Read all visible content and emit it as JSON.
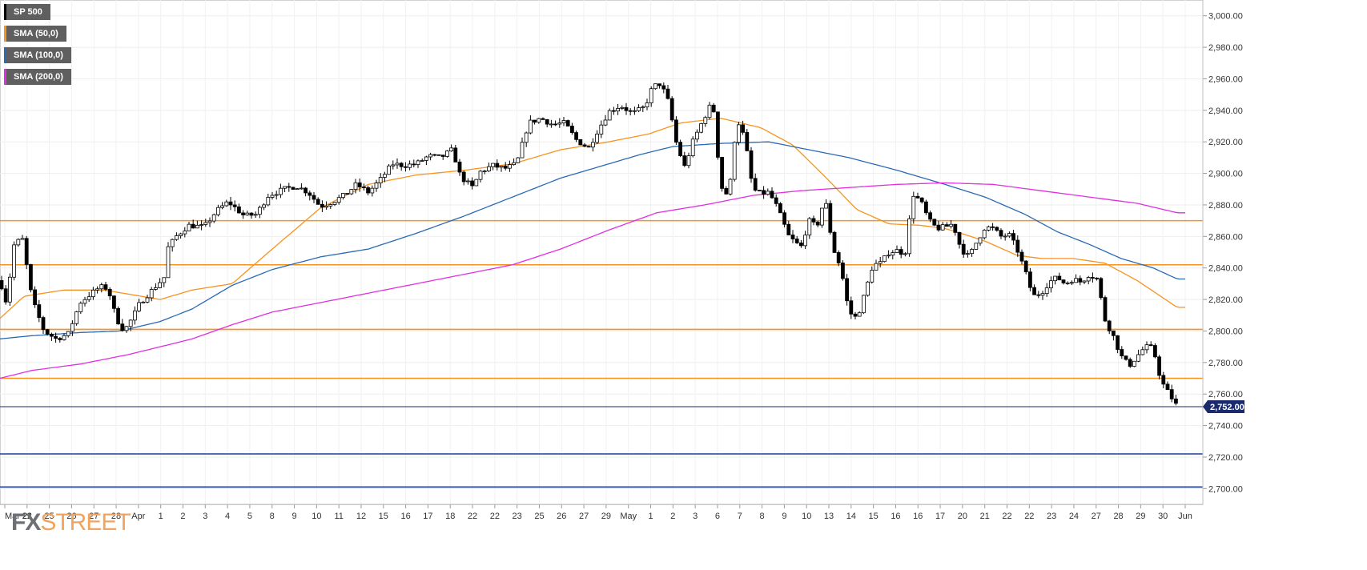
{
  "legend": {
    "items": [
      {
        "label": "SP 500",
        "color": "#000000"
      },
      {
        "label": "SMA (50,0)",
        "color": "#f7931e"
      },
      {
        "label": "SMA (100,0)",
        "color": "#2a6ab5"
      },
      {
        "label": "SMA (200,0)",
        "color": "#e02ee0"
      }
    ]
  },
  "logo": {
    "part1": "FX",
    "part2": "STREET"
  },
  "chart_data": {
    "type": "candlestick",
    "ylim": [
      2690,
      3010
    ],
    "y_ticks": [
      "2,700.00",
      "2,720.00",
      "2,740.00",
      "2,760.00",
      "2,780.00",
      "2,800.00",
      "2,820.00",
      "2,840.00",
      "2,860.00",
      "2,880.00",
      "2,900.00",
      "2,920.00",
      "2,940.00",
      "2,960.00",
      "2,980.00",
      "3,000.00"
    ],
    "y_tick_values": [
      2700,
      2720,
      2740,
      2760,
      2780,
      2800,
      2820,
      2840,
      2860,
      2880,
      2900,
      2920,
      2940,
      2960,
      2980,
      3000
    ],
    "x_labels": [
      "Mar 21",
      "22",
      "25",
      "26",
      "27",
      "28",
      "Apr",
      "1",
      "2",
      "3",
      "4",
      "5",
      "8",
      "9",
      "10",
      "11",
      "12",
      "15",
      "16",
      "17",
      "18",
      "22",
      "22",
      "23",
      "25",
      "26",
      "27",
      "29",
      "May",
      "1",
      "2",
      "3",
      "6",
      "7",
      "8",
      "9",
      "10",
      "13",
      "14",
      "15",
      "16",
      "16",
      "17",
      "20",
      "21",
      "22",
      "22",
      "23",
      "24",
      "27",
      "28",
      "29",
      "30",
      "Jun"
    ],
    "current_price": {
      "value": 2752,
      "label": "2,752.00"
    },
    "horizontal_levels": [
      {
        "value": 2870,
        "color": "#f7931e"
      },
      {
        "value": 2842,
        "color": "#f7931e"
      },
      {
        "value": 2801,
        "color": "#f7931e"
      },
      {
        "value": 2770,
        "color": "#f7931e"
      },
      {
        "value": 2722,
        "color": "#1f3f9f"
      },
      {
        "value": 2701,
        "color": "#1f3f9f"
      }
    ],
    "price_anchors": [
      [
        0,
        2832
      ],
      [
        8,
        2818
      ],
      [
        18,
        2856
      ],
      [
        28,
        2858
      ],
      [
        40,
        2820
      ],
      [
        55,
        2800
      ],
      [
        70,
        2795
      ],
      [
        85,
        2798
      ],
      [
        100,
        2818
      ],
      [
        112,
        2823
      ],
      [
        125,
        2828
      ],
      [
        135,
        2827
      ],
      [
        145,
        2808
      ],
      [
        155,
        2800
      ],
      [
        165,
        2808
      ],
      [
        175,
        2818
      ],
      [
        190,
        2826
      ],
      [
        205,
        2834
      ],
      [
        210,
        2853
      ],
      [
        220,
        2860
      ],
      [
        235,
        2867
      ],
      [
        255,
        2866
      ],
      [
        270,
        2876
      ],
      [
        285,
        2882
      ],
      [
        305,
        2873
      ],
      [
        320,
        2874
      ],
      [
        335,
        2886
      ],
      [
        355,
        2890
      ],
      [
        370,
        2892
      ],
      [
        385,
        2888
      ],
      [
        400,
        2879
      ],
      [
        415,
        2882
      ],
      [
        430,
        2886
      ],
      [
        445,
        2893
      ],
      [
        460,
        2888
      ],
      [
        475,
        2896
      ],
      [
        490,
        2906
      ],
      [
        505,
        2905
      ],
      [
        520,
        2906
      ],
      [
        535,
        2911
      ],
      [
        550,
        2910
      ],
      [
        565,
        2915
      ],
      [
        575,
        2898
      ],
      [
        590,
        2891
      ],
      [
        600,
        2901
      ],
      [
        615,
        2905
      ],
      [
        630,
        2903
      ],
      [
        645,
        2906
      ],
      [
        660,
        2932
      ],
      [
        675,
        2935
      ],
      [
        690,
        2931
      ],
      [
        705,
        2932
      ],
      [
        720,
        2921
      ],
      [
        735,
        2916
      ],
      [
        745,
        2926
      ],
      [
        760,
        2939
      ],
      [
        775,
        2943
      ],
      [
        790,
        2938
      ],
      [
        805,
        2942
      ],
      [
        815,
        2955
      ],
      [
        825,
        2957
      ],
      [
        835,
        2945
      ],
      [
        845,
        2918
      ],
      [
        855,
        2904
      ],
      [
        865,
        2920
      ],
      [
        880,
        2936
      ],
      [
        890,
        2946
      ],
      [
        900,
        2892
      ],
      [
        910,
        2885
      ],
      [
        920,
        2935
      ],
      [
        930,
        2922
      ],
      [
        940,
        2890
      ],
      [
        950,
        2887
      ],
      [
        960,
        2888
      ],
      [
        970,
        2879
      ],
      [
        985,
        2860
      ],
      [
        1000,
        2853
      ],
      [
        1010,
        2870
      ],
      [
        1020,
        2866
      ],
      [
        1030,
        2885
      ],
      [
        1040,
        2853
      ],
      [
        1050,
        2840
      ],
      [
        1060,
        2812
      ],
      [
        1070,
        2808
      ],
      [
        1080,
        2824
      ],
      [
        1090,
        2842
      ],
      [
        1100,
        2843
      ],
      [
        1110,
        2850
      ],
      [
        1120,
        2851
      ],
      [
        1130,
        2849
      ],
      [
        1140,
        2887
      ],
      [
        1150,
        2882
      ],
      [
        1160,
        2870
      ],
      [
        1170,
        2865
      ],
      [
        1180,
        2866
      ],
      [
        1190,
        2868
      ],
      [
        1200,
        2852
      ],
      [
        1210,
        2847
      ],
      [
        1220,
        2857
      ],
      [
        1230,
        2866
      ],
      [
        1240,
        2865
      ],
      [
        1250,
        2860
      ],
      [
        1260,
        2861
      ],
      [
        1270,
        2852
      ],
      [
        1280,
        2838
      ],
      [
        1290,
        2822
      ],
      [
        1300,
        2824
      ],
      [
        1310,
        2831
      ],
      [
        1320,
        2834
      ],
      [
        1330,
        2830
      ],
      [
        1340,
        2833
      ],
      [
        1350,
        2831
      ],
      [
        1360,
        2836
      ],
      [
        1370,
        2833
      ],
      [
        1380,
        2807
      ],
      [
        1390,
        2797
      ],
      [
        1400,
        2784
      ],
      [
        1410,
        2778
      ],
      [
        1420,
        2784
      ],
      [
        1430,
        2790
      ],
      [
        1440,
        2789
      ],
      [
        1450,
        2768
      ],
      [
        1460,
        2760
      ],
      [
        1470,
        2752
      ]
    ],
    "series": [
      {
        "name": "SMA (50,0)",
        "color": "#f7931e",
        "anchors": [
          [
            0,
            2808
          ],
          [
            30,
            2822
          ],
          [
            80,
            2826
          ],
          [
            130,
            2826
          ],
          [
            200,
            2820
          ],
          [
            240,
            2826
          ],
          [
            290,
            2830
          ],
          [
            340,
            2852
          ],
          [
            400,
            2878
          ],
          [
            460,
            2893
          ],
          [
            520,
            2899
          ],
          [
            580,
            2902
          ],
          [
            640,
            2906
          ],
          [
            700,
            2915
          ],
          [
            760,
            2920
          ],
          [
            810,
            2925
          ],
          [
            850,
            2932
          ],
          [
            900,
            2935
          ],
          [
            950,
            2929
          ],
          [
            990,
            2918
          ],
          [
            1030,
            2898
          ],
          [
            1070,
            2877
          ],
          [
            1110,
            2868
          ],
          [
            1150,
            2867
          ],
          [
            1180,
            2865
          ],
          [
            1200,
            2862
          ],
          [
            1230,
            2857
          ],
          [
            1270,
            2848
          ],
          [
            1300,
            2846
          ],
          [
            1340,
            2846
          ],
          [
            1380,
            2843
          ],
          [
            1420,
            2832
          ],
          [
            1470,
            2815
          ]
        ]
      },
      {
        "name": "SMA (100,0)",
        "color": "#2a6ab5",
        "anchors": [
          [
            0,
            2795
          ],
          [
            40,
            2797
          ],
          [
            100,
            2799
          ],
          [
            150,
            2800
          ],
          [
            200,
            2806
          ],
          [
            240,
            2814
          ],
          [
            290,
            2829
          ],
          [
            340,
            2839
          ],
          [
            400,
            2847
          ],
          [
            460,
            2852
          ],
          [
            520,
            2862
          ],
          [
            580,
            2873
          ],
          [
            640,
            2885
          ],
          [
            700,
            2897
          ],
          [
            760,
            2906
          ],
          [
            800,
            2912
          ],
          [
            840,
            2917
          ],
          [
            900,
            2919
          ],
          [
            960,
            2920
          ],
          [
            1000,
            2916
          ],
          [
            1060,
            2910
          ],
          [
            1120,
            2902
          ],
          [
            1180,
            2893
          ],
          [
            1230,
            2885
          ],
          [
            1280,
            2874
          ],
          [
            1320,
            2863
          ],
          [
            1360,
            2855
          ],
          [
            1400,
            2846
          ],
          [
            1440,
            2840
          ],
          [
            1470,
            2833
          ]
        ]
      },
      {
        "name": "SMA (200,0)",
        "color": "#e02ee0",
        "anchors": [
          [
            0,
            2770
          ],
          [
            40,
            2775
          ],
          [
            100,
            2779
          ],
          [
            160,
            2785
          ],
          [
            240,
            2795
          ],
          [
            290,
            2804
          ],
          [
            340,
            2812
          ],
          [
            400,
            2818
          ],
          [
            460,
            2824
          ],
          [
            520,
            2830
          ],
          [
            580,
            2836
          ],
          [
            640,
            2842
          ],
          [
            700,
            2852
          ],
          [
            760,
            2864
          ],
          [
            820,
            2875
          ],
          [
            880,
            2880
          ],
          [
            940,
            2886
          ],
          [
            1000,
            2889
          ],
          [
            1060,
            2891
          ],
          [
            1120,
            2893
          ],
          [
            1180,
            2894
          ],
          [
            1240,
            2893
          ],
          [
            1300,
            2889
          ],
          [
            1360,
            2885
          ],
          [
            1420,
            2881
          ],
          [
            1470,
            2875
          ]
        ]
      }
    ]
  }
}
